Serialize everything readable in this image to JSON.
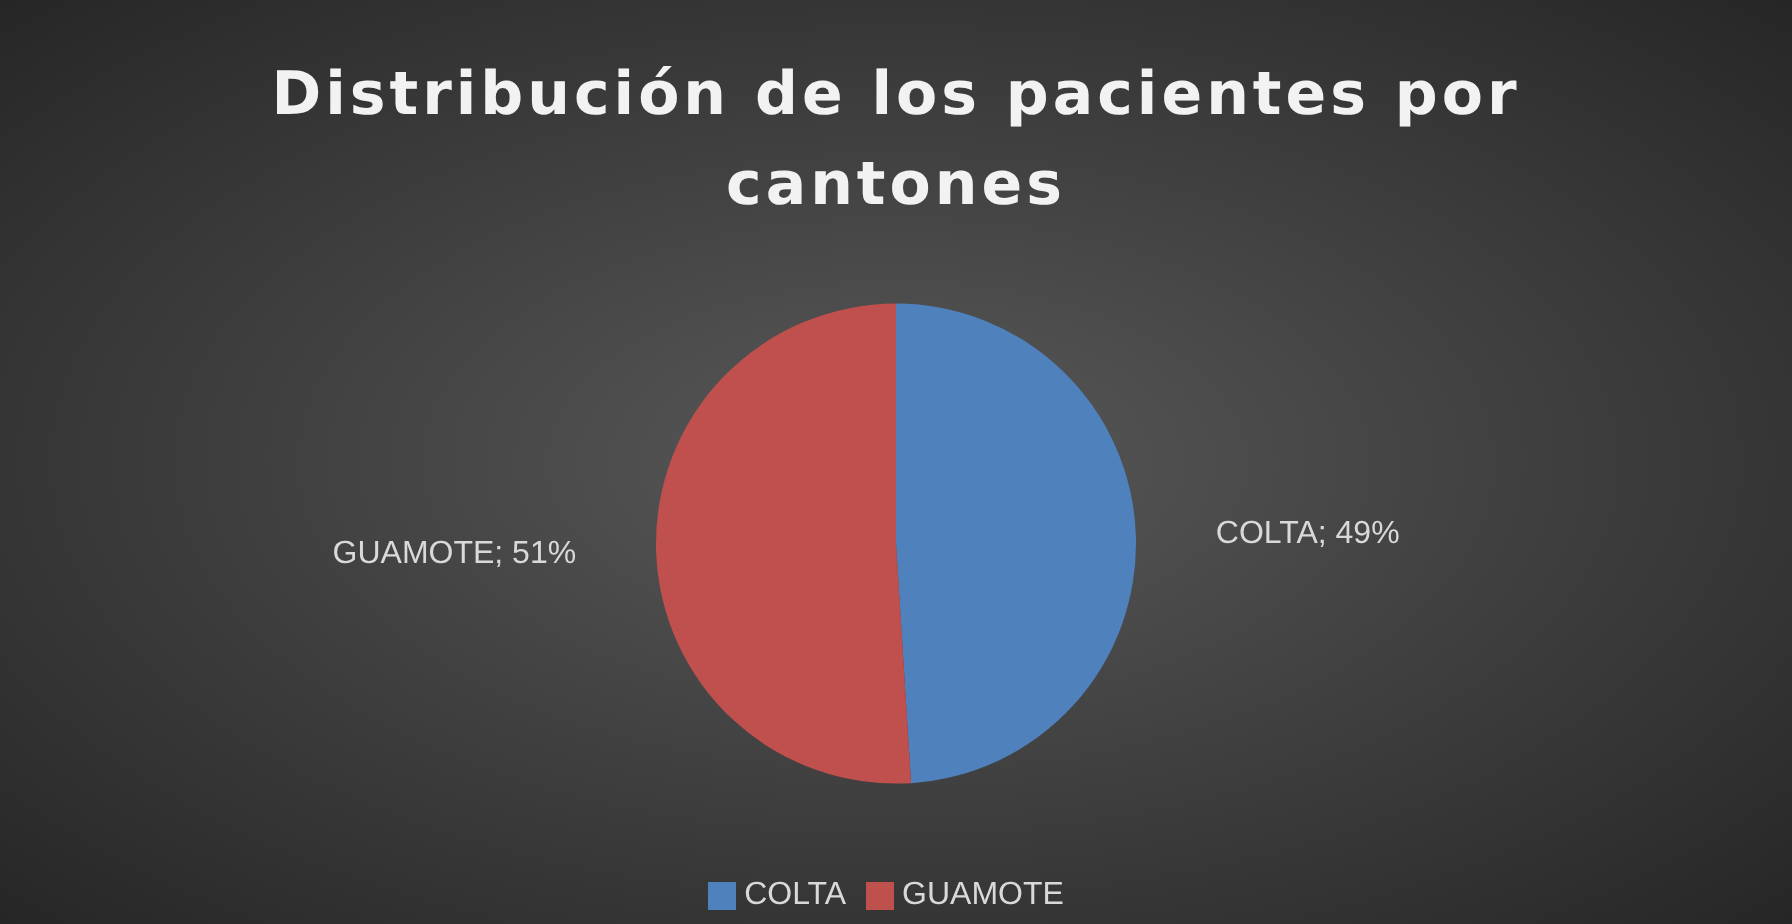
{
  "chart_data": {
    "type": "pie",
    "title": "Distribución de los pacientes por cantones",
    "categories": [
      "COLTA",
      "GUAMOTE"
    ],
    "values": [
      49,
      51
    ],
    "value_labels": [
      "COLTA;  49%",
      "GUAMOTE; 51%"
    ],
    "colors": [
      "#4f81bd",
      "#c0504d"
    ],
    "legend": "bottom"
  }
}
